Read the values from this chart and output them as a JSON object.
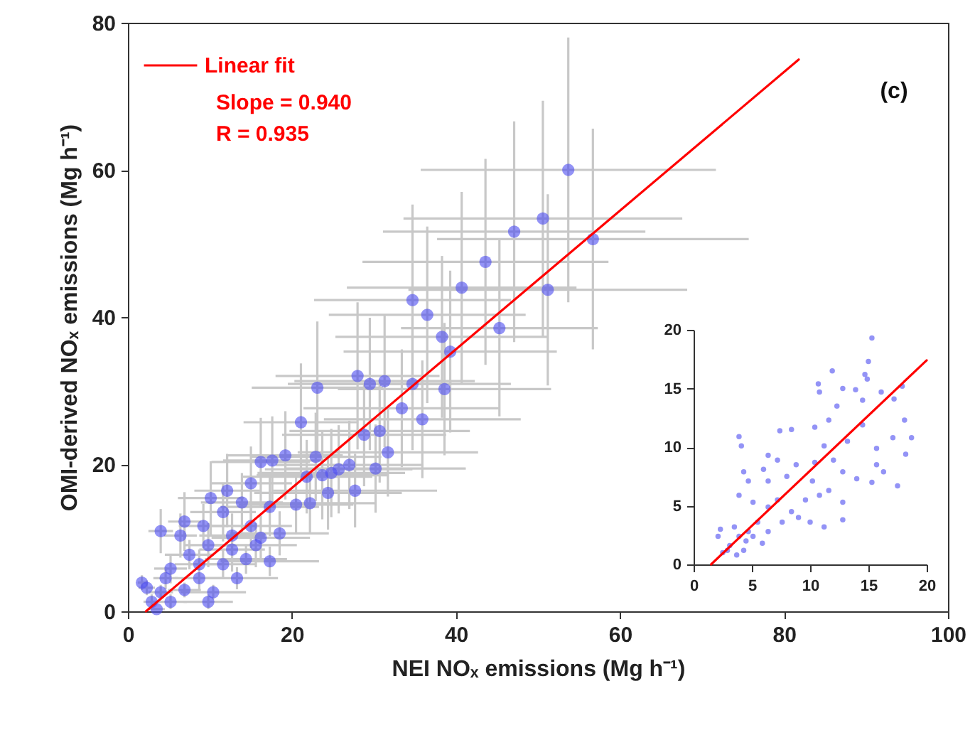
{
  "chart_data": [
    {
      "type": "scatter",
      "xlabel": "NEI NOₓ emissions (Mg h⁻¹)",
      "ylabel": "OMI-derived NOₓ emissions (Mg h⁻¹)",
      "xlim": [
        0,
        100
      ],
      "xticks": [
        0,
        20,
        40,
        60,
        80,
        100
      ],
      "ylim": [
        0,
        80
      ],
      "yticks": [
        0,
        20,
        40,
        60,
        80
      ],
      "grid": false,
      "legend": "top left",
      "marker": "circle",
      "annotations": [
        "Slope = 0.940",
        "R = 0.935",
        "(c)"
      ],
      "series": [
        {
          "color": "#4b4bf0",
          "x": [
            53.7,
            50.6,
            47.1,
            56.7,
            43.6,
            40.7,
            51.2,
            34.7,
            36.5,
            38.3,
            45.3,
            39.3,
            23.1,
            28.0,
            29.5,
            31.3,
            34.7,
            38.6,
            21.1,
            33.4,
            35.9,
            28.8,
            30.7,
            19.2,
            16.2,
            17.6,
            22.9,
            31.7,
            30.2,
            27.0,
            25.7,
            24.8,
            23.7,
            21.8,
            24.4,
            27.7,
            20.5,
            22.2,
            17.3,
            12.1,
            10.1,
            15.0,
            6.9,
            4.0,
            15.0,
            18.5,
            9.8,
            12.7,
            16.2,
            7.5,
            11.6,
            14.4,
            17.3,
            5.2,
            8.7,
            13.3,
            2.3,
            4.0,
            6.9,
            10.4,
            2.9,
            3.5,
            5.2,
            6.4,
            9.2,
            11.6,
            13.9,
            1.7,
            4.6,
            8.7,
            12.7,
            15.6,
            9.8
          ],
          "values": [
            60.0,
            53.4,
            51.6,
            50.6,
            47.5,
            44.0,
            43.7,
            42.3,
            40.3,
            37.3,
            38.5,
            35.3,
            30.4,
            32.0,
            30.9,
            31.3,
            30.9,
            30.2,
            25.7,
            27.6,
            26.1,
            24.0,
            24.5,
            21.2,
            20.3,
            20.5,
            21.0,
            21.6,
            19.4,
            19.9,
            19.3,
            18.8,
            18.5,
            18.3,
            16.1,
            16.4,
            14.5,
            14.7,
            14.2,
            16.4,
            15.4,
            17.4,
            12.2,
            10.9,
            11.6,
            10.6,
            9.0,
            10.3,
            10.0,
            7.7,
            6.4,
            7.1,
            6.8,
            5.8,
            4.5,
            4.5,
            3.2,
            2.6,
            2.9,
            2.6,
            1.3,
            0.3,
            1.3,
            10.3,
            11.6,
            13.5,
            14.8,
            3.9,
            4.5,
            6.4,
            8.4,
            9.0,
            1.3
          ],
          "xerrors": [
            18,
            17,
            16,
            19,
            15,
            14,
            17,
            12,
            12,
            13,
            12,
            13,
            8,
            10,
            10,
            11,
            12,
            13,
            7,
            12,
            12,
            10,
            11,
            7,
            6,
            6,
            8,
            11,
            11,
            9,
            9,
            9,
            8,
            8,
            9,
            10,
            7,
            8,
            6,
            4,
            4,
            5,
            2,
            1.5,
            5,
            6,
            3,
            4,
            6,
            3,
            4,
            5,
            6,
            2,
            3,
            5,
            1,
            1.5,
            2,
            4,
            1,
            1,
            2,
            2,
            3,
            4,
            5,
            0.5,
            1.5,
            3,
            4,
            5,
            3
          ],
          "errors": [
            18,
            16,
            15,
            15,
            14,
            13,
            13,
            13,
            12,
            11,
            12,
            11,
            9,
            10,
            9,
            9,
            9,
            9,
            8,
            8,
            8,
            7,
            7,
            6,
            6,
            6,
            6,
            6,
            6,
            6,
            6,
            6,
            6,
            5,
            5,
            5,
            4,
            4,
            4,
            5,
            5,
            5,
            4,
            3,
            3,
            3,
            3,
            3,
            3,
            2,
            2,
            2,
            2,
            2,
            1.5,
            1.5,
            1,
            1,
            1,
            1,
            1,
            null,
            1,
            3,
            3,
            4,
            4,
            1,
            1.5,
            2,
            3,
            3,
            1
          ]
        },
        {
          "type": "line",
          "name": "Linear fit",
          "color": "#ff0000",
          "marker": "none",
          "x": [
            2.2,
            81.8
          ],
          "values": [
            0,
            75
          ]
        }
      ]
    },
    {
      "type": "scatter",
      "xlim": [
        0,
        20
      ],
      "xticks": [
        0,
        5,
        10,
        15,
        20
      ],
      "ylim": [
        0,
        20
      ],
      "yticks": [
        0,
        5,
        10,
        15,
        20
      ],
      "grid": false,
      "marker": "circle",
      "series": [
        {
          "color": "#4b4bf0",
          "x": [
            15.3,
            15.0,
            11.9,
            14.7,
            10.7,
            12.8,
            13.9,
            14.9,
            17.9,
            16.1,
            10.8,
            12.3,
            14.5,
            17.2,
            7.4,
            8.4,
            10.4,
            11.6,
            14.5,
            18.1,
            3.9,
            4.1,
            18.7,
            17.1,
            13.2,
            11.2,
            15.7,
            18.2,
            6.4,
            7.2,
            4.3,
            6.0,
            8.8,
            10.4,
            12.0,
            15.7,
            12.8,
            10.2,
            8.0,
            4.7,
            6.4,
            16.3,
            17.5,
            15.3,
            14.0,
            11.6,
            10.8,
            9.6,
            12.8,
            3.9,
            5.1,
            6.4,
            7.2,
            8.4,
            7.6,
            5.5,
            10.0,
            11.2,
            12.8,
            9.0,
            6.4,
            5.9,
            2.3,
            2.1,
            3.5,
            3.9,
            4.5,
            3.1,
            2.9,
            3.7,
            4.7,
            4.3,
            5.1,
            2.5
          ],
          "values": [
            19.3,
            17.3,
            16.5,
            16.2,
            15.4,
            15.0,
            14.9,
            15.8,
            15.2,
            14.7,
            14.7,
            13.5,
            14.0,
            14.1,
            11.4,
            11.5,
            11.7,
            12.3,
            11.9,
            12.3,
            10.9,
            10.1,
            10.8,
            10.8,
            10.5,
            10.1,
            9.9,
            9.4,
            9.3,
            8.9,
            7.9,
            8.1,
            8.5,
            8.7,
            8.9,
            8.5,
            7.9,
            7.1,
            7.5,
            7.1,
            7.1,
            7.9,
            6.7,
            7.0,
            7.3,
            6.3,
            5.9,
            5.5,
            5.3,
            5.9,
            5.3,
            4.9,
            5.5,
            4.5,
            3.6,
            3.6,
            3.6,
            3.2,
            3.8,
            4.0,
            2.8,
            1.8,
            3.0,
            2.4,
            3.2,
            2.4,
            2.0,
            1.6,
            1.2,
            0.8,
            2.8,
            1.2,
            2.4,
            1.0
          ]
        },
        {
          "type": "line",
          "color": "#ff0000",
          "marker": "none",
          "x": [
            1.5,
            20
          ],
          "values": [
            0,
            17.4
          ]
        }
      ]
    }
  ]
}
